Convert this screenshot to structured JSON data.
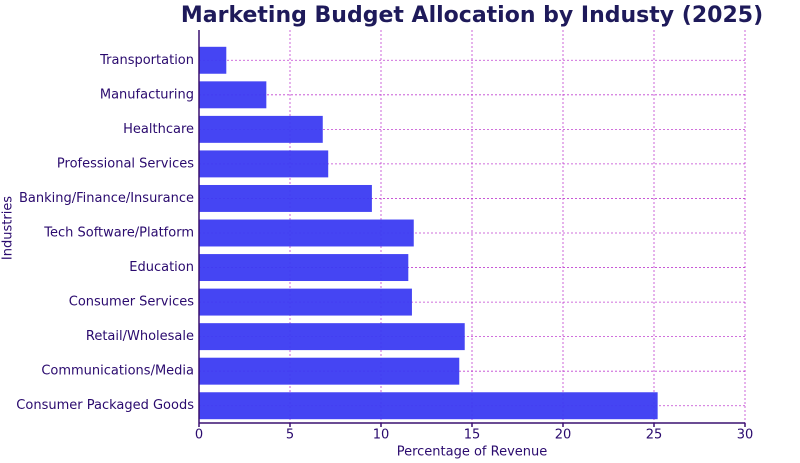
{
  "chart_data": {
    "type": "barh",
    "title": "Marketing Budget Allocation by Industy (2025)",
    "xlabel": "Percentage of Revenue",
    "ylabel": "Industries",
    "categories": [
      "Transportation",
      "Manufacturing",
      "Healthcare",
      "Professional Services",
      "Banking/Finance/Insurance",
      "Tech Software/Platform",
      "Education",
      "Consumer Services",
      "Retail/Wholesale",
      "Communications/Media",
      "Consumer Packaged Goods"
    ],
    "values": [
      1.5,
      3.7,
      6.8,
      7.1,
      9.5,
      11.8,
      11.5,
      11.7,
      14.6,
      14.3,
      25.2
    ],
    "color": "#3b3bf2",
    "xlim": [
      0,
      30
    ],
    "xticks": [
      0,
      5,
      10,
      15,
      20,
      25,
      30
    ],
    "grid": true
  }
}
